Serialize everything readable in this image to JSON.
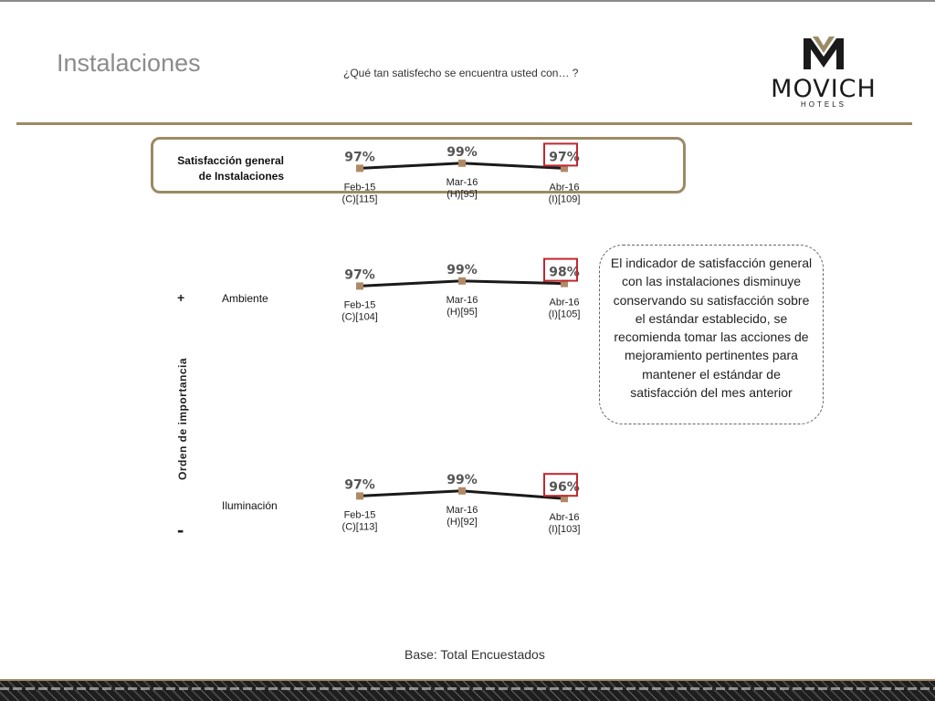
{
  "header": {
    "title": "Instalaciones",
    "question": "¿Qué tan satisfecho se encuentra usted con… ?"
  },
  "logo": {
    "brand": "MOVICH",
    "sub": "HOTELS"
  },
  "labels": {
    "overall_line1": "Satisfacción general",
    "overall_line2": "de Instalaciones",
    "plus": "+",
    "minus": "-",
    "axis": "Orden de importancia"
  },
  "callout": "El indicador de satisfacción general con las instalaciones disminuye conservando su satisfacción sobre el estándar establecido, se recomienda tomar las acciones de mejoramiento pertinentes para mantener el estándar de satisfacción del mes anterior",
  "footer": {
    "base": "Base: Total Encuestados"
  },
  "colors": {
    "gold": "#9b8a64",
    "highlight": "#c0272d",
    "marker": "#b08a66",
    "line": "#1a1a1a"
  },
  "chart_data": [
    {
      "type": "line",
      "name": "Satisfacción general de Instalaciones",
      "x": [
        "Feb-15",
        "Mar-16",
        "Abr-16"
      ],
      "x_sub": [
        "(C)[115]",
        "(H)[95]",
        "(I)[109]"
      ],
      "values": [
        97,
        99,
        97
      ],
      "value_labels": [
        "97%",
        "99%",
        "97%"
      ],
      "highlight_index": 2
    },
    {
      "type": "line",
      "name": "Ambiente",
      "x": [
        "Feb-15",
        "Mar-16",
        "Abr-16"
      ],
      "x_sub": [
        "(C)[104]",
        "(H)[95]",
        "(I)[105]"
      ],
      "values": [
        97,
        99,
        98
      ],
      "value_labels": [
        "97%",
        "99%",
        "98%"
      ],
      "highlight_index": 2
    },
    {
      "type": "line",
      "name": "Iluminación",
      "x": [
        "Feb-15",
        "Mar-16",
        "Abr-16"
      ],
      "x_sub": [
        "(C)[113]",
        "(H)[92]",
        "(I)[103]"
      ],
      "values": [
        97,
        99,
        96
      ],
      "value_labels": [
        "97%",
        "99%",
        "96%"
      ],
      "highlight_index": 2
    }
  ]
}
